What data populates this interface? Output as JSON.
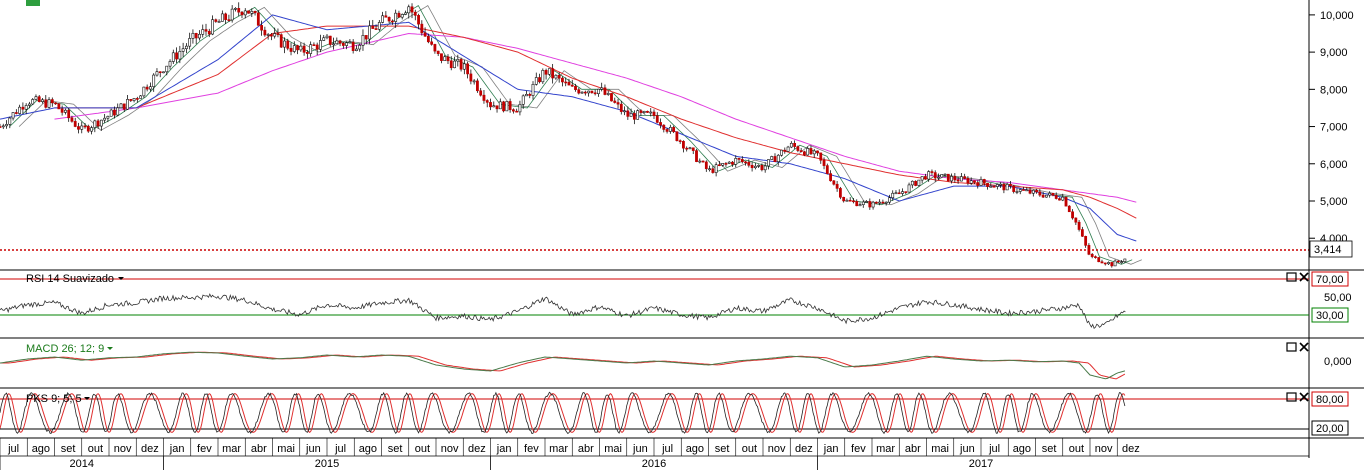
{
  "colors": {
    "candle_up": "#111111",
    "candle_down": "#c00000",
    "ma_fast": "#2e7d4f",
    "ma_mid": "#808080",
    "ma_blue": "#3344cc",
    "ma_red": "#e03030",
    "ma_magenta": "#e040e0",
    "last_price_line": "#cc0000",
    "rsi_line": "#333333",
    "level_upper": "#d00000",
    "level_lower": "#008000",
    "macd_line": "#4a7a4a",
    "signal_line": "#e03030",
    "pks_k": "#222222",
    "pks_d": "#e03030",
    "grid": "#000000"
  },
  "corner_badge_icon": "green-square-icon",
  "price_panel": {
    "last_price_label": "3,414",
    "y_ticks": [
      {
        "value": 10000,
        "label": "10,000"
      },
      {
        "value": 9000,
        "label": "9,000"
      },
      {
        "value": 8000,
        "label": "8,000"
      },
      {
        "value": 7000,
        "label": "7,000"
      },
      {
        "value": 6000,
        "label": "6,000"
      },
      {
        "value": 5000,
        "label": "5,000"
      },
      {
        "value": 4000,
        "label": "4,000"
      }
    ]
  },
  "rsi_panel": {
    "title": "RSI 14 Suavizado",
    "upper_label": "70,00",
    "mid_label": "50,00",
    "lower_label": "30,00"
  },
  "macd_panel": {
    "title": "MACD 26; 12; 9",
    "zero_label": "0,000"
  },
  "pks_panel": {
    "title": "PKS 9; 5; 5",
    "upper_label": "80,00",
    "lower_label": "20,00"
  },
  "panel_controls": {
    "maximize_icon": "maximize-icon",
    "close_icon": "close-icon",
    "dropdown_icon": "caret-down-icon"
  },
  "chart_data": {
    "type": "line",
    "ylim": [
      3200,
      10400
    ],
    "last_price": 3.414,
    "x_months": [
      "jul",
      "ago",
      "set",
      "out",
      "nov",
      "dez",
      "jan",
      "fev",
      "mar",
      "abr",
      "mai",
      "jun",
      "jul",
      "ago",
      "set",
      "out",
      "nov",
      "dez",
      "jan",
      "fev",
      "mar",
      "abr",
      "mai",
      "jun",
      "jul",
      "ago",
      "set",
      "out",
      "nov",
      "dez",
      "jan",
      "fev",
      "mar",
      "abr",
      "mai",
      "jun",
      "jul",
      "ago",
      "set",
      "out",
      "nov",
      "dez"
    ],
    "x_years": [
      {
        "label": "2014",
        "start_month": 0
      },
      {
        "label": "2015",
        "start_month": 6
      },
      {
        "label": "2016",
        "start_month": 18
      },
      {
        "label": "2017",
        "start_month": 30
      }
    ],
    "price_keypoints": [
      [
        0,
        7000
      ],
      [
        1,
        7700
      ],
      [
        2,
        7600
      ],
      [
        3,
        6900
      ],
      [
        4,
        7300
      ],
      [
        5,
        7800
      ],
      [
        6,
        8600
      ],
      [
        7,
        9300
      ],
      [
        8,
        9800
      ],
      [
        9,
        10200
      ],
      [
        10,
        9400
      ],
      [
        11,
        9000
      ],
      [
        12,
        9300
      ],
      [
        13,
        9200
      ],
      [
        14,
        9800
      ],
      [
        15,
        10250
      ],
      [
        16,
        8900
      ],
      [
        17,
        8600
      ],
      [
        18,
        7600
      ],
      [
        19,
        7500
      ],
      [
        20,
        8500
      ],
      [
        21,
        8000
      ],
      [
        22,
        8000
      ],
      [
        23,
        7300
      ],
      [
        24,
        7300
      ],
      [
        25,
        6600
      ],
      [
        26,
        5800
      ],
      [
        27,
        6100
      ],
      [
        28,
        5900
      ],
      [
        29,
        6500
      ],
      [
        30,
        6200
      ],
      [
        31,
        5000
      ],
      [
        32,
        4900
      ],
      [
        33,
        5200
      ],
      [
        34,
        5700
      ],
      [
        35,
        5600
      ],
      [
        36,
        5500
      ],
      [
        37,
        5350
      ],
      [
        38,
        5200
      ],
      [
        39,
        5100
      ],
      [
        39.5,
        4400
      ],
      [
        40,
        3500
      ],
      [
        40.8,
        3300
      ],
      [
        41.3,
        3450
      ]
    ],
    "ma_keypoints": {
      "blue": [
        [
          0,
          7200
        ],
        [
          2,
          7500
        ],
        [
          5,
          7500
        ],
        [
          8,
          8800
        ],
        [
          10,
          10000
        ],
        [
          12,
          9600
        ],
        [
          15,
          9800
        ],
        [
          17,
          8900
        ],
        [
          19,
          8000
        ],
        [
          21,
          7800
        ],
        [
          23,
          7400
        ],
        [
          25,
          6800
        ],
        [
          27,
          6200
        ],
        [
          29,
          6000
        ],
        [
          31,
          5600
        ],
        [
          33,
          5000
        ],
        [
          35,
          5400
        ],
        [
          37,
          5400
        ],
        [
          39,
          5100
        ],
        [
          40,
          4800
        ],
        [
          41,
          4100
        ],
        [
          41.8,
          3900
        ]
      ],
      "red": [
        [
          2,
          7500
        ],
        [
          5,
          7500
        ],
        [
          8,
          8400
        ],
        [
          10,
          9500
        ],
        [
          12,
          9700
        ],
        [
          15,
          9700
        ],
        [
          17,
          9400
        ],
        [
          19,
          9000
        ],
        [
          21,
          8300
        ],
        [
          23,
          7800
        ],
        [
          25,
          7200
        ],
        [
          27,
          6700
        ],
        [
          29,
          6300
        ],
        [
          31,
          6000
        ],
        [
          33,
          5700
        ],
        [
          35,
          5500
        ],
        [
          37,
          5400
        ],
        [
          39,
          5300
        ],
        [
          40,
          5100
        ],
        [
          41,
          4800
        ],
        [
          41.8,
          4500
        ]
      ],
      "magenta": [
        [
          2,
          7200
        ],
        [
          5,
          7500
        ],
        [
          8,
          7900
        ],
        [
          10,
          8500
        ],
        [
          12,
          9000
        ],
        [
          15,
          9500
        ],
        [
          17,
          9400
        ],
        [
          19,
          9100
        ],
        [
          21,
          8700
        ],
        [
          23,
          8300
        ],
        [
          25,
          7800
        ],
        [
          27,
          7200
        ],
        [
          29,
          6700
        ],
        [
          31,
          6200
        ],
        [
          33,
          5800
        ],
        [
          35,
          5600
        ],
        [
          37,
          5500
        ],
        [
          39,
          5300
        ],
        [
          40,
          5200
        ],
        [
          41,
          5100
        ],
        [
          41.8,
          4950
        ]
      ]
    },
    "rsi_keypoints": [
      [
        0,
        45
      ],
      [
        1,
        55
      ],
      [
        2,
        58
      ],
      [
        3,
        42
      ],
      [
        4,
        55
      ],
      [
        5,
        58
      ],
      [
        6,
        65
      ],
      [
        7,
        66
      ],
      [
        8,
        68
      ],
      [
        9,
        62
      ],
      [
        10,
        48
      ],
      [
        11,
        40
      ],
      [
        12,
        55
      ],
      [
        13,
        50
      ],
      [
        14,
        58
      ],
      [
        15,
        62
      ],
      [
        16,
        35
      ],
      [
        17,
        38
      ],
      [
        18,
        32
      ],
      [
        19,
        45
      ],
      [
        20,
        65
      ],
      [
        21,
        40
      ],
      [
        22,
        52
      ],
      [
        23,
        38
      ],
      [
        24,
        50
      ],
      [
        25,
        40
      ],
      [
        26,
        35
      ],
      [
        27,
        50
      ],
      [
        28,
        45
      ],
      [
        29,
        62
      ],
      [
        30,
        50
      ],
      [
        31,
        30
      ],
      [
        32,
        35
      ],
      [
        33,
        50
      ],
      [
        34,
        60
      ],
      [
        35,
        55
      ],
      [
        36,
        48
      ],
      [
        37,
        42
      ],
      [
        38,
        45
      ],
      [
        39,
        50
      ],
      [
        39.6,
        55
      ],
      [
        40,
        22
      ],
      [
        40.6,
        25
      ],
      [
        41,
        38
      ],
      [
        41.5,
        50
      ]
    ],
    "macd_keypoints": [
      [
        0,
        -0.05
      ],
      [
        1,
        0.05
      ],
      [
        2,
        0.1
      ],
      [
        3,
        0.02
      ],
      [
        4,
        0.08
      ],
      [
        5,
        0.1
      ],
      [
        6,
        0.18
      ],
      [
        7,
        0.22
      ],
      [
        8,
        0.2
      ],
      [
        9,
        0.12
      ],
      [
        10,
        0.05
      ],
      [
        11,
        0.08
      ],
      [
        12,
        0.15
      ],
      [
        13,
        0.1
      ],
      [
        14,
        0.15
      ],
      [
        15,
        0.12
      ],
      [
        16,
        -0.1
      ],
      [
        17,
        -0.2
      ],
      [
        18,
        -0.25
      ],
      [
        19,
        -0.05
      ],
      [
        20,
        0.1
      ],
      [
        21,
        0.05
      ],
      [
        22,
        0.0
      ],
      [
        23,
        -0.05
      ],
      [
        24,
        0.0
      ],
      [
        25,
        -0.05
      ],
      [
        26,
        -0.1
      ],
      [
        27,
        0.0
      ],
      [
        28,
        0.05
      ],
      [
        29,
        0.12
      ],
      [
        30,
        0.08
      ],
      [
        31,
        -0.15
      ],
      [
        32,
        -0.1
      ],
      [
        33,
        0.0
      ],
      [
        34,
        0.12
      ],
      [
        35,
        0.05
      ],
      [
        36,
        0.0
      ],
      [
        37,
        0.02
      ],
      [
        38,
        -0.02
      ],
      [
        39,
        0.0
      ],
      [
        39.6,
        -0.05
      ],
      [
        40,
        -0.35
      ],
      [
        40.6,
        -0.45
      ],
      [
        41,
        -0.3
      ],
      [
        41.8,
        -0.15
      ]
    ],
    "pks_cycle_months": 1.05,
    "pks_range": [
      8,
      92
    ]
  }
}
